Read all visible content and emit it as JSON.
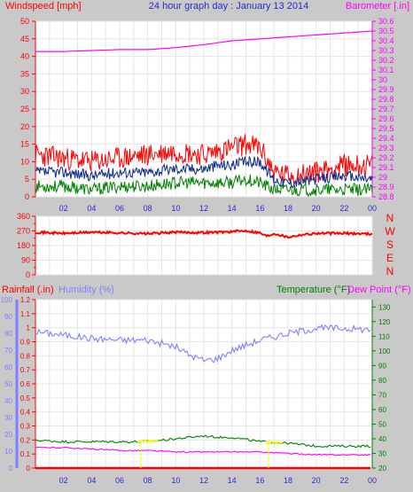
{
  "title": "24 hour graph day : January 13 2014",
  "time_labels": [
    "02",
    "04",
    "06",
    "08",
    "10",
    "12",
    "14",
    "16",
    "18",
    "20",
    "22",
    "00"
  ],
  "colors": {
    "background": "#c9c9c9",
    "panel": "#ffffff",
    "grid": "#e6e6e6",
    "wind": "#ff0000",
    "gust_avg": "#0b2a8a",
    "green": "#008000",
    "baro": "#ff00ff",
    "humidity": "#8080ff",
    "rain": "#ff0000",
    "dewpoint": "#ff00ff",
    "yellow": "#ffff00",
    "title": "#2b2bcc"
  },
  "chart_data": [
    {
      "type": "line",
      "panel": "wind-barometer",
      "ylabel": "Windspeed [mph]",
      "ylabel_right": "Barometer [.in]",
      "y_ticks": [
        0,
        5,
        10,
        15,
        20,
        25,
        30,
        35,
        40,
        45,
        50
      ],
      "y_right_ticks": [
        "28.8",
        "28.9",
        "29",
        "29.1",
        "29.2",
        "29.3",
        "29.4",
        "29.5",
        "29.6",
        "29.7",
        "29.8",
        "29.9",
        "30",
        "30.1",
        "30.2",
        "30.3",
        "30.4",
        "30.5",
        "30.6"
      ],
      "ylim": [
        0,
        50
      ],
      "ylim_right": [
        28.8,
        30.6
      ],
      "x_hours": [
        0,
        2,
        4,
        6,
        8,
        10,
        12,
        13,
        14,
        15,
        16,
        17,
        18,
        20,
        22,
        24
      ],
      "series": [
        {
          "axis": "right",
          "color": "baro",
          "values": [
            30.29,
            30.29,
            30.3,
            30.31,
            30.31,
            30.33,
            30.36,
            30.38,
            30.4,
            30.41,
            30.42,
            30.43,
            30.44,
            30.46,
            30.48,
            30.5
          ]
        },
        {
          "axis": "left",
          "color": "wind",
          "values": [
            12,
            11,
            10,
            11,
            12,
            13,
            12,
            13,
            14,
            15,
            14,
            7,
            6,
            7,
            9,
            9
          ]
        },
        {
          "axis": "left",
          "color": "gust_avg",
          "values": [
            7,
            7,
            6,
            7,
            7,
            8,
            8,
            9,
            9,
            10,
            10,
            5,
            4,
            5,
            6,
            5
          ]
        },
        {
          "axis": "left",
          "color": "green",
          "values": [
            3,
            3,
            2,
            3,
            3,
            4,
            4,
            4,
            4,
            5,
            4,
            2,
            2,
            2,
            2,
            2
          ]
        }
      ]
    },
    {
      "type": "line",
      "panel": "wind-direction",
      "y_ticks": [
        0,
        90,
        180,
        270,
        360
      ],
      "y_ticks_minor": [
        45,
        135,
        225,
        315
      ],
      "ylim": [
        0,
        360
      ],
      "compass": [
        "N",
        "W",
        "S",
        "E",
        "N"
      ],
      "x_hours": [
        0,
        2,
        4,
        6,
        8,
        10,
        12,
        14,
        15,
        16,
        16.5,
        17,
        18,
        19,
        20,
        22,
        24
      ],
      "series": [
        {
          "axis": "left",
          "color": "wind",
          "values": [
            262,
            255,
            262,
            258,
            253,
            262,
            260,
            265,
            272,
            258,
            238,
            255,
            232,
            248,
            255,
            255,
            252
          ]
        }
      ]
    },
    {
      "type": "line",
      "panel": "rain-humidity-temperature",
      "ylabel": "Rainfall (.in)",
      "ylabel_humidity": "Humidity (%)",
      "ylabel_right": "Temperature (°F)",
      "ylabel_dew": "Dew Point (°F)",
      "y_rain_ticks": [
        "0",
        "0.1",
        "0.2",
        "0.3",
        "0.4",
        "0.5",
        "0.6",
        "0.7",
        "0.8",
        "0.9",
        "1",
        "1.1",
        "1.2"
      ],
      "y_humidity_ticks": [
        0,
        10,
        20,
        30,
        40,
        50,
        60,
        70,
        80,
        90,
        100
      ],
      "y_temp_ticks": [
        20,
        30,
        40,
        50,
        60,
        70,
        80,
        90,
        100,
        110,
        120,
        130
      ],
      "ylim_rain": [
        0,
        1.2
      ],
      "ylim_humidity": [
        0,
        100
      ],
      "ylim_temp": [
        20,
        135
      ],
      "x_hours": [
        0,
        2,
        4,
        6,
        8,
        10,
        11,
        12,
        13,
        14,
        16,
        18,
        20,
        22,
        24
      ],
      "series": [
        {
          "axis": "humidity",
          "color": "humidity",
          "values": [
            81,
            79,
            77,
            76,
            76,
            72,
            67,
            64,
            65,
            70,
            76,
            80,
            83,
            83,
            82
          ]
        },
        {
          "axis": "temp",
          "color": "green",
          "values": [
            39,
            38,
            38,
            38,
            38,
            40,
            41,
            42,
            41,
            41,
            38,
            37,
            35,
            35,
            35
          ]
        },
        {
          "axis": "temp",
          "color": "dewpoint",
          "values": [
            34,
            34,
            33,
            32,
            32,
            31,
            31,
            31,
            31,
            31,
            31,
            30,
            29,
            29,
            29
          ]
        },
        {
          "axis": "rain",
          "color": "rain",
          "values": [
            0,
            0,
            0,
            0,
            0,
            0,
            0,
            0,
            0,
            0,
            0,
            0,
            0,
            0,
            0
          ]
        }
      ]
    }
  ]
}
